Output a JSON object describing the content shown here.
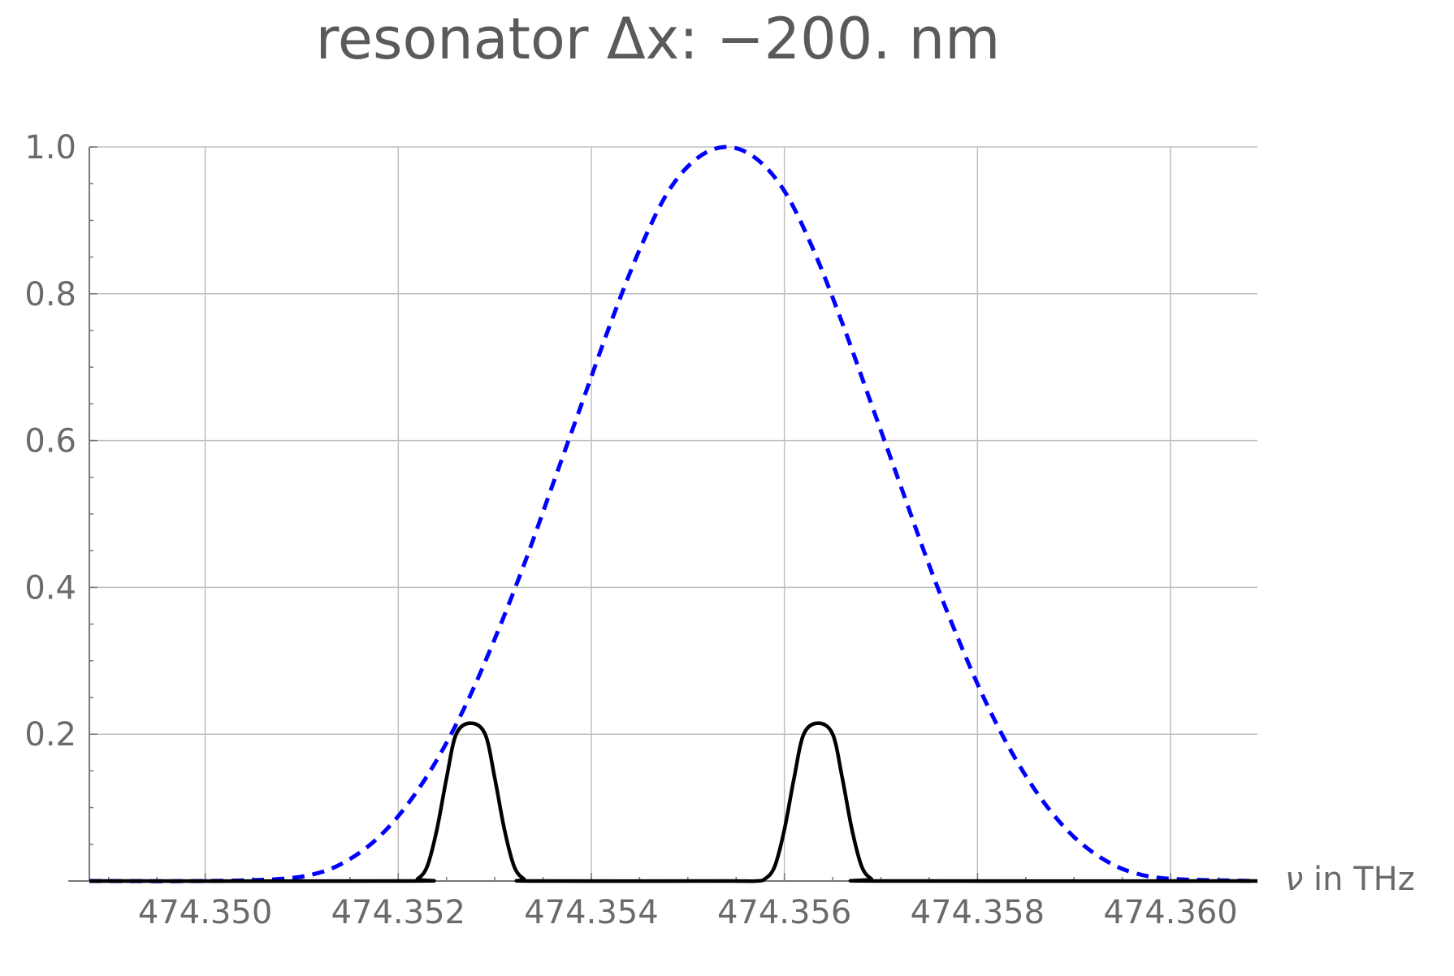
{
  "chart_data": {
    "type": "line",
    "title": "resonator Δx: −200. nm",
    "xlabel_symbol": "ν",
    "xlabel_rest": " in THz",
    "ylabel": "",
    "xlim": [
      474.3488,
      474.3609
    ],
    "ylim": [
      0,
      1.0
    ],
    "grid": true,
    "x_ticks": [
      474.35,
      474.352,
      474.354,
      474.356,
      474.358,
      474.36
    ],
    "x_tick_labels": [
      "474.350",
      "474.352",
      "474.354",
      "474.356",
      "474.358",
      "474.360"
    ],
    "y_ticks": [
      0.2,
      0.4,
      0.6,
      0.8,
      1.0
    ],
    "y_tick_labels": [
      "0.2",
      "0.4",
      "0.6",
      "0.8",
      "1.0"
    ],
    "series": [
      {
        "style": "dashed",
        "color": "#0000ff",
        "points": [
          [
            474.3488,
            0.0
          ],
          [
            474.35,
            0.0
          ],
          [
            474.3508,
            0.003
          ],
          [
            474.3512,
            0.012
          ],
          [
            474.3515,
            0.03
          ],
          [
            474.3518,
            0.06
          ],
          [
            474.3521,
            0.105
          ],
          [
            474.3524,
            0.165
          ],
          [
            474.3527,
            0.24
          ],
          [
            474.353,
            0.33
          ],
          [
            474.3533,
            0.43
          ],
          [
            474.3536,
            0.54
          ],
          [
            474.3539,
            0.65
          ],
          [
            474.3542,
            0.76
          ],
          [
            474.3545,
            0.86
          ],
          [
            474.3548,
            0.94
          ],
          [
            474.3551,
            0.985
          ],
          [
            474.3554,
            1.0
          ],
          [
            474.3557,
            0.985
          ],
          [
            474.356,
            0.94
          ],
          [
            474.3563,
            0.86
          ],
          [
            474.3566,
            0.76
          ],
          [
            474.3569,
            0.65
          ],
          [
            474.3572,
            0.54
          ],
          [
            474.3575,
            0.43
          ],
          [
            474.3578,
            0.33
          ],
          [
            474.3581,
            0.24
          ],
          [
            474.3584,
            0.165
          ],
          [
            474.3587,
            0.105
          ],
          [
            474.359,
            0.06
          ],
          [
            474.3593,
            0.03
          ],
          [
            474.3596,
            0.012
          ],
          [
            474.36,
            0.003
          ],
          [
            474.3609,
            0.0
          ]
        ]
      },
      {
        "style": "solid",
        "color": "#000000",
        "points": [
          [
            474.3488,
            0.0
          ],
          [
            474.3521,
            0.0
          ],
          [
            474.3522,
            0.003
          ],
          [
            474.3523,
            0.02
          ],
          [
            474.3524,
            0.07
          ],
          [
            474.3525,
            0.14
          ],
          [
            474.3526,
            0.2
          ],
          [
            474.35275,
            0.215
          ],
          [
            474.3529,
            0.2
          ],
          [
            474.353,
            0.14
          ],
          [
            474.3531,
            0.07
          ],
          [
            474.3532,
            0.02
          ],
          [
            474.3533,
            0.003
          ],
          [
            474.3534,
            0.0
          ],
          [
            474.3554,
            0.0
          ],
          [
            474.3557,
            0.0
          ],
          [
            474.3558,
            0.003
          ],
          [
            474.3559,
            0.02
          ],
          [
            474.356,
            0.07
          ],
          [
            474.3561,
            0.14
          ],
          [
            474.3562,
            0.2
          ],
          [
            474.35635,
            0.215
          ],
          [
            474.3565,
            0.2
          ],
          [
            474.3566,
            0.14
          ],
          [
            474.3567,
            0.07
          ],
          [
            474.3568,
            0.02
          ],
          [
            474.3569,
            0.003
          ],
          [
            474.357,
            0.0
          ],
          [
            474.3609,
            0.0
          ]
        ]
      }
    ]
  }
}
